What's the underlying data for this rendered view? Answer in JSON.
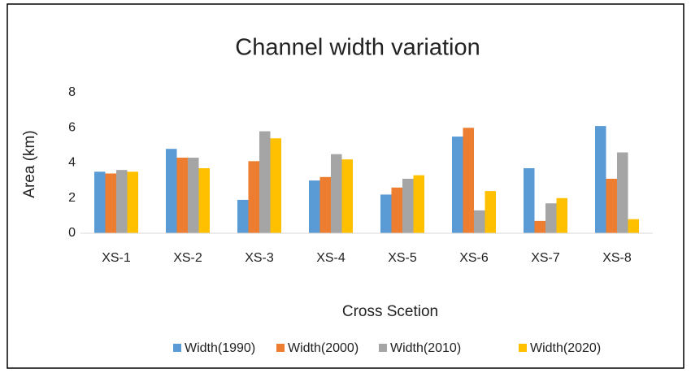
{
  "chart_data": {
    "type": "bar",
    "title": "Channel width variation",
    "x_label": "Cross Scetion",
    "y_label": "Area (km)",
    "categories": [
      "XS-1",
      "XS-2",
      "XS-3",
      "XS-4",
      "XS-5",
      "XS-6",
      "XS-7",
      "XS-8"
    ],
    "series": [
      {
        "name": "Width(1990)",
        "color": "#5b9bd5",
        "values": [
          3.5,
          4.8,
          1.9,
          3.0,
          2.2,
          5.5,
          3.7,
          6.1
        ]
      },
      {
        "name": "Width(2000)",
        "color": "#ed7d31",
        "values": [
          3.4,
          4.3,
          4.1,
          3.2,
          2.6,
          6.0,
          0.7,
          3.1
        ]
      },
      {
        "name": "Width(2010)",
        "color": "#a5a5a5",
        "values": [
          3.6,
          4.3,
          5.8,
          4.5,
          3.1,
          1.3,
          1.7,
          4.6
        ]
      },
      {
        "name": "Width(2020)",
        "color": "#ffc000",
        "values": [
          3.5,
          3.7,
          5.4,
          4.2,
          3.3,
          2.4,
          2.0,
          0.8
        ]
      }
    ],
    "ylim": [
      0,
      8
    ],
    "yticks": [
      0,
      2,
      4,
      6,
      8
    ],
    "grid": false,
    "legend": "bottom"
  }
}
